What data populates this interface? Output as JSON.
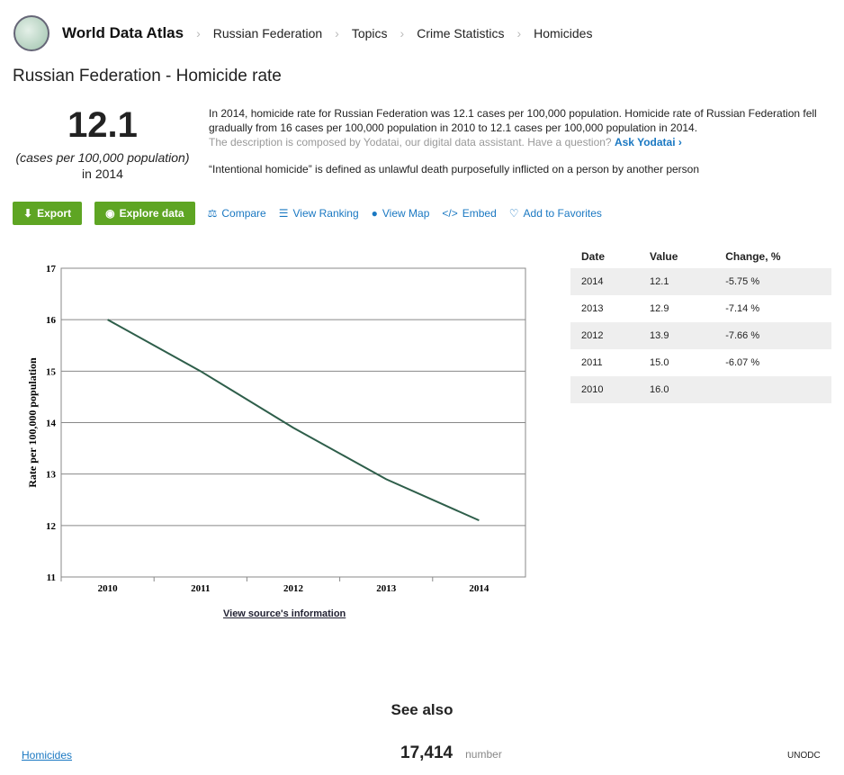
{
  "header": {
    "brand": "World Data Atlas",
    "breadcrumbs": [
      "Russian Federation",
      "Topics",
      "Crime Statistics",
      "Homicides"
    ]
  },
  "title": "Russian Federation - Homicide rate",
  "headline": {
    "value": "12.1",
    "unit": "(cases per 100,000 population)",
    "year": "in 2014"
  },
  "description": {
    "text": "In 2014, homicide rate for Russian Federation was 12.1 cases per 100,000 population. Homicide rate of Russian Federation fell gradually from 16 cases per 100,000 population in 2010 to 12.1 cases per 100,000 population in 2014.",
    "composed": "The description is composed by Yodatai, our digital data assistant. Have a question?",
    "ask": "Ask Yodatai ›",
    "definition": "“Intentional homicide” is defined as unlawful death purposefully inflicted on a person by another person"
  },
  "actions": {
    "export": "Export",
    "explore": "Explore data",
    "compare": "Compare",
    "ranking": "View Ranking",
    "map": "View Map",
    "embed": "Embed",
    "favorites": "Add to Favorites"
  },
  "table": {
    "headers": [
      "Date",
      "Value",
      "Change, %"
    ],
    "rows": [
      [
        "2014",
        "12.1",
        "-5.75 %"
      ],
      [
        "2013",
        "12.9",
        "-7.14 %"
      ],
      [
        "2012",
        "13.9",
        "-7.66 %"
      ],
      [
        "2011",
        "15.0",
        "-6.07 %"
      ],
      [
        "2010",
        "16.0",
        ""
      ]
    ]
  },
  "source_link": "View source's information",
  "see_also": {
    "title": "See also",
    "item": "Homicides",
    "value": "17,414",
    "unit": "number",
    "source": "UNODC"
  },
  "colors": {
    "accent": "#5ea523",
    "link": "#1a78c2",
    "line": "#2e5e4a"
  },
  "chart_data": {
    "type": "line",
    "categories": [
      "2010",
      "2011",
      "2012",
      "2013",
      "2014"
    ],
    "values": [
      16.0,
      15.0,
      13.9,
      12.9,
      12.1
    ],
    "ylabel": "Rate per 100,000 population",
    "ylim": [
      11,
      17
    ],
    "yticks": [
      11,
      12,
      13,
      14,
      15,
      16,
      17
    ],
    "grid": true
  }
}
